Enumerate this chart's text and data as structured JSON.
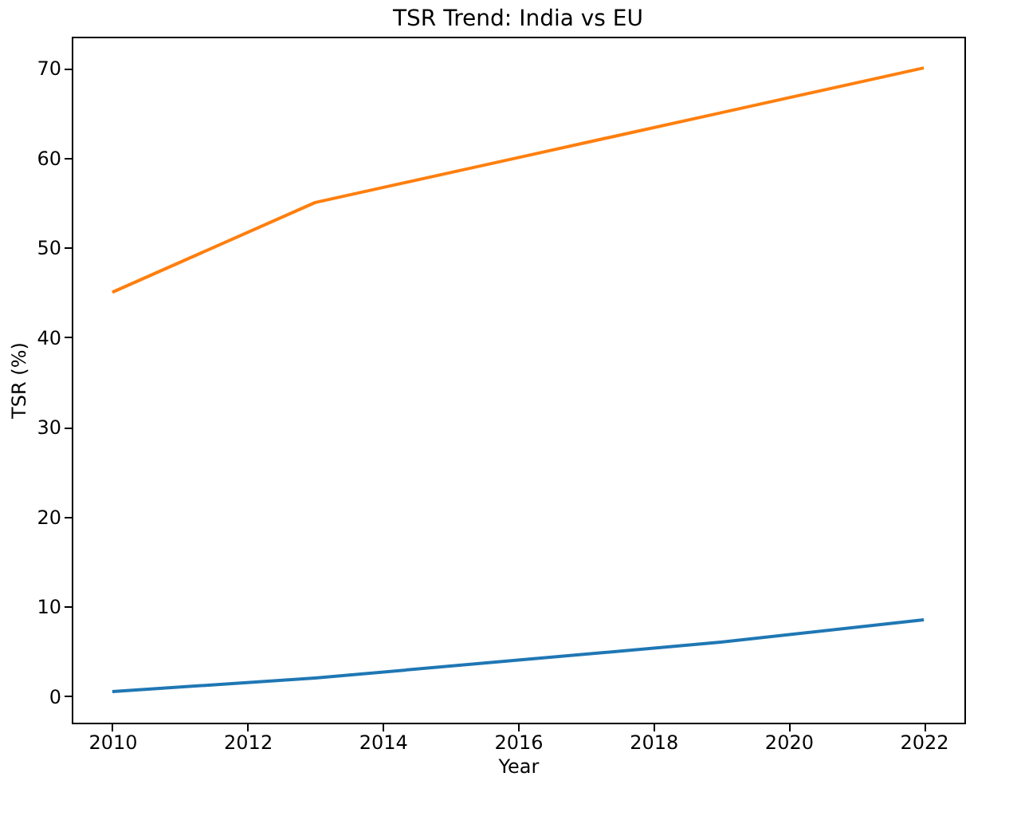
{
  "chart_data": {
    "type": "line",
    "title": "TSR Trend: India vs EU",
    "xlabel": "Year",
    "ylabel": "TSR (%)",
    "x": [
      2010,
      2013,
      2016,
      2019,
      2022
    ],
    "series": [
      {
        "color": "#1f77b4",
        "values": [
          0.5,
          2,
          4,
          6,
          8.5
        ]
      },
      {
        "color": "#ff7f0e",
        "values": [
          45,
          55,
          60,
          65,
          70
        ]
      }
    ],
    "xlim": [
      2009.4,
      2022.6
    ],
    "xticks": [
      2010,
      2012,
      2014,
      2016,
      2018,
      2020,
      2022
    ],
    "ylim": [
      -2.975,
      73.475
    ],
    "yticks": [
      0,
      10,
      20,
      30,
      40,
      50,
      60,
      70
    ],
    "grid": false,
    "legend": false,
    "marker": "none",
    "line_style": "solid"
  }
}
